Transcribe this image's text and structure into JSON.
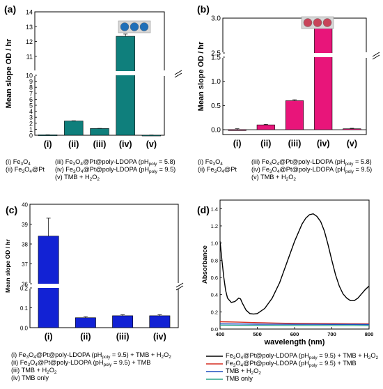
{
  "chart_data": [
    {
      "panel": "(a)",
      "type": "bar",
      "ylabel": "Mean slope OD / hr",
      "categories": [
        "(i)",
        "(ii)",
        "(iii)",
        "(iv)",
        "(v)"
      ],
      "values": [
        0.07,
        2.38,
        1.12,
        12.35,
        0.02
      ],
      "errors": [
        0.02,
        0.04,
        0.03,
        0.15,
        0.02
      ],
      "axis_breaks": true,
      "lower_range": [
        0,
        10
      ],
      "lower_ticks": [
        0,
        1,
        2,
        3,
        4,
        5,
        6,
        7,
        8,
        9,
        10
      ],
      "upper_range": [
        10,
        14
      ],
      "upper_ticks": [
        11,
        12,
        13,
        14
      ],
      "bar_color": "#0f7f7c",
      "legend": [
        [
          "(i) Fe₃O₄",
          "(iii) Fe₃O₄@Pt@poly-LDOPA (pHpoly = 5.8)"
        ],
        [
          "(ii) Fe₃O₄@Pt",
          "(iv) Fe₃O₄@Pt@poly-LDOPA (pHpoly = 9.5)"
        ],
        [
          "",
          "(v) TMB + H₂O₂"
        ]
      ]
    },
    {
      "panel": "(b)",
      "type": "bar",
      "ylabel": "Mean slope OD / hr",
      "categories": [
        "(i)",
        "(ii)",
        "(iii)",
        "(iv)",
        "(v)"
      ],
      "values": [
        0.0,
        0.1,
        0.6,
        2.9,
        0.02
      ],
      "errors": [
        0.02,
        0.01,
        0.02,
        0.05,
        0.01
      ],
      "axis_breaks": true,
      "lower_range": [
        -0.1,
        1.5
      ],
      "lower_ticks": [
        0.0,
        0.5,
        1.0,
        1.5
      ],
      "upper_range": [
        2.5,
        3.0
      ],
      "upper_ticks": [
        2.5,
        3.0
      ],
      "bar_color": "#e8157a",
      "legend": [
        [
          "(i) Fe₃O₄",
          "(iii) Fe₃O₄@Pt@poly-LDOPA (pHpoly = 5.8)"
        ],
        [
          "(ii) Fe₃O₄@Pt",
          "(iv) Fe₃O₄@Pt@poly-LDOPA (pHpoly = 9.5)"
        ],
        [
          "",
          "(v) TMB + H₂O₂"
        ]
      ]
    },
    {
      "panel": "(c)",
      "type": "bar",
      "ylabel": "Mean slope OD / hr",
      "categories": [
        "(i)",
        "(ii)",
        "(iii)",
        "(iv)"
      ],
      "values": [
        38.4,
        0.05,
        0.06,
        0.06
      ],
      "errors": [
        0.9,
        0.005,
        0.005,
        0.005
      ],
      "axis_breaks": true,
      "lower_range": [
        0,
        0.2
      ],
      "lower_ticks": [
        0.0,
        0.1,
        0.2
      ],
      "upper_range": [
        36,
        40
      ],
      "upper_ticks": [
        36,
        37,
        38,
        39,
        40
      ],
      "bar_color": "#1222d4",
      "legend": [
        "(i) Fe₃O₄@Pt@poly-LDOPA (pHpoly = 9.5) + TMB + H₂O₂",
        "(ii) Fe₃O₄@Pt@poly-LDOPA (pHpoly = 9.5) + TMB",
        "(iii) TMB + H₂O₂",
        "(iv) TMB only"
      ]
    },
    {
      "panel": "(d)",
      "type": "line",
      "xlabel": "wavelength (nm)",
      "ylabel": "Absorbance",
      "xlim": [
        400,
        800
      ],
      "ylim": [
        0,
        1.5
      ],
      "xticks": [
        400,
        500,
        600,
        700,
        800
      ],
      "yticks": [
        0.0,
        0.2,
        0.4,
        0.6,
        0.8,
        1.0,
        1.2,
        1.4
      ],
      "series": [
        {
          "name": "Fe₃O₄@Pt@poly-LDOPA (pHpoly = 9.5) + TMB + H₂O₂",
          "color": "#000000",
          "x": [
            400,
            405,
            410,
            415,
            420,
            430,
            440,
            450,
            455,
            460,
            470,
            480,
            490,
            500,
            520,
            540,
            560,
            580,
            600,
            620,
            630,
            640,
            650,
            660,
            670,
            680,
            690,
            700,
            710,
            720,
            730,
            740,
            750,
            760,
            770,
            780,
            790,
            800
          ],
          "y": [
            1.02,
            0.8,
            0.6,
            0.45,
            0.36,
            0.31,
            0.32,
            0.36,
            0.35,
            0.3,
            0.22,
            0.18,
            0.175,
            0.18,
            0.24,
            0.36,
            0.54,
            0.78,
            1.02,
            1.22,
            1.29,
            1.33,
            1.34,
            1.31,
            1.25,
            1.14,
            0.98,
            0.8,
            0.63,
            0.5,
            0.41,
            0.36,
            0.33,
            0.33,
            0.36,
            0.41,
            0.46,
            0.5
          ]
        },
        {
          "name": "Fe₃O₄@Pt@poly-LDOPA (pHpoly = 9.5) + TMB",
          "color": "#d62d20",
          "x": [
            400,
            450,
            500,
            550,
            600,
            650,
            700,
            750,
            800
          ],
          "y": [
            0.085,
            0.08,
            0.075,
            0.07,
            0.066,
            0.064,
            0.063,
            0.062,
            0.06
          ]
        },
        {
          "name": "TMB + H₂O₂",
          "color": "#1f4fbf",
          "x": [
            400,
            450,
            500,
            550,
            600,
            650,
            700,
            750,
            800
          ],
          "y": [
            0.06,
            0.058,
            0.057,
            0.056,
            0.055,
            0.055,
            0.054,
            0.054,
            0.053
          ]
        },
        {
          "name": "TMB only",
          "color": "#2aa58c",
          "x": [
            400,
            450,
            500,
            550,
            600,
            650,
            700,
            750,
            800
          ],
          "y": [
            0.045,
            0.043,
            0.042,
            0.041,
            0.04,
            0.04,
            0.039,
            0.039,
            0.038
          ]
        }
      ]
    }
  ]
}
